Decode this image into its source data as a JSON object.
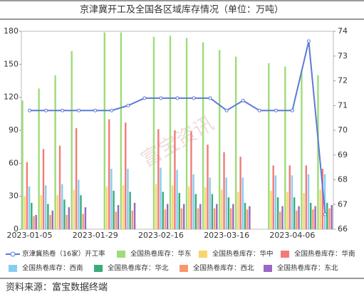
{
  "chart_data": {
    "type": "bar",
    "title": "京津冀开工及全国各区域库存情况（单位：万吨）",
    "source": "资料来源：富宝数据终端",
    "watermark": "富宝资讯",
    "categories": [
      "2023-01-05",
      null,
      null,
      null,
      "2023-01-29",
      null,
      null,
      null,
      "2023-02-16",
      null,
      null,
      null,
      "2023-03-16",
      null,
      null,
      null,
      "2023-04-06",
      null,
      null
    ],
    "ylim": [
      0,
      180
    ],
    "yticks": [
      0,
      30,
      60,
      90,
      120,
      150,
      180
    ],
    "y2lim": [
      66,
      74
    ],
    "y2ticks": [
      66,
      67,
      68,
      69,
      70,
      71,
      72,
      73,
      74
    ],
    "series": [
      {
        "name": "京津冀热卷（16家）开工率",
        "type": "line",
        "axis": "y2",
        "color": "#5b7bd5",
        "values": [
          70.8,
          70.8,
          70.8,
          70.8,
          70.8,
          70.8,
          71.0,
          71.3,
          71.3,
          71.3,
          71.3,
          71.3,
          70.8,
          71.2,
          70.8,
          70.8,
          70.8,
          73.6,
          66.6
        ]
      },
      {
        "name": "全国热卷库存：华东",
        "color": "#9ddc7a",
        "values": [
          117,
          128,
          140,
          162,
          null,
          179,
          179,
          null,
          175,
          176,
          174,
          170,
          163,
          157,
          null,
          151,
          148,
          145,
          140
        ]
      },
      {
        "name": "全国热卷库存：华中",
        "color": "#f8d56b",
        "values": [
          30,
          31,
          31,
          36,
          null,
          39,
          40,
          null,
          41,
          40,
          39,
          38,
          36,
          34,
          null,
          35,
          34,
          33,
          36
        ]
      },
      {
        "name": "全国热卷库存：华南",
        "color": "#f37a7a",
        "values": [
          61,
          73,
          76,
          92,
          null,
          100,
          97,
          null,
          91,
          90,
          89,
          77,
          70,
          66,
          null,
          58,
          58,
          58,
          55
        ]
      },
      {
        "name": "全国热卷库存：西南",
        "color": "#86cef0",
        "values": [
          39,
          40,
          41,
          45,
          null,
          55,
          55,
          null,
          56,
          54,
          50,
          47,
          47,
          47,
          null,
          49,
          49,
          50,
          50
        ]
      },
      {
        "name": "全国热卷库存：华北",
        "color": "#3aab7a",
        "values": [
          24,
          23,
          27,
          31,
          null,
          35,
          34,
          null,
          34,
          33,
          32,
          32,
          29,
          24,
          null,
          29,
          29,
          24,
          24
        ]
      },
      {
        "name": "全国热卷库存：西北",
        "color": "#f6986a",
        "values": [
          12,
          13,
          13,
          14,
          null,
          16,
          17,
          null,
          18,
          19,
          19,
          19,
          19,
          18,
          null,
          16,
          17,
          18,
          19
        ]
      },
      {
        "name": "全国热卷库存：东北",
        "color": "#9b67c4",
        "values": [
          13,
          17,
          20,
          20,
          null,
          22,
          24,
          null,
          23,
          23,
          23,
          23,
          23,
          21,
          null,
          21,
          21,
          21,
          22
        ]
      }
    ]
  }
}
